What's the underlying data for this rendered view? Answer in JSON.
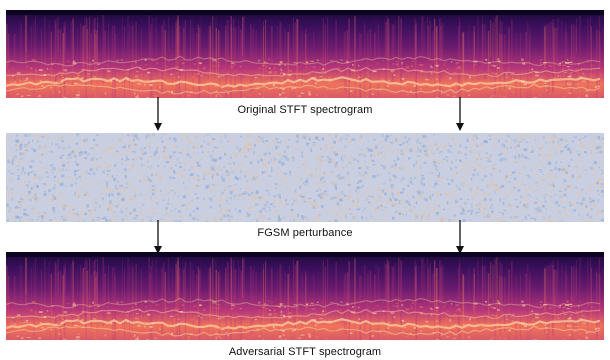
{
  "panels": [
    {
      "id": "original",
      "caption": "Original STFT spectrogram",
      "type": "spectrogram",
      "colormap": "magma"
    },
    {
      "id": "perturbation",
      "caption": "FGSM perturbance",
      "type": "perturbation",
      "colormap": "coolwarm"
    },
    {
      "id": "adversarial",
      "caption": "Adversarial STFT spectrogram",
      "type": "spectrogram",
      "colormap": "magma"
    }
  ],
  "colors": {
    "magma_dark": "#1c0a3a",
    "magma_purple": "#6a1b6e",
    "magma_magenta": "#b5367a",
    "magma_orange": "#f0735a",
    "magma_light": "#fcd7a4",
    "perturb_base": "#c9cfe0",
    "perturb_blue": "#8faad8",
    "perturb_tan": "#e2c3a6",
    "arrow": "#111111"
  }
}
